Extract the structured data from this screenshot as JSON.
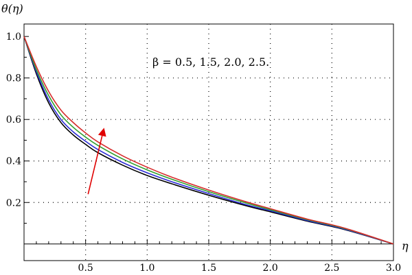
{
  "chart_data": {
    "type": "line",
    "title": "",
    "ylabel": "θ(η)",
    "xlabel": "η",
    "annotation": "β = 0.5, 1.5, 2.0, 2.5.",
    "xlim": [
      0,
      3.0
    ],
    "ylim": [
      -0.08,
      1.06
    ],
    "xticks": [
      0.5,
      1.0,
      1.5,
      2.0,
      2.5,
      3.0
    ],
    "xtick_labels": [
      "0.5",
      "1.0",
      "1.5",
      "2.0",
      "2.5",
      "3.0"
    ],
    "yticks": [
      0.2,
      0.4,
      0.6,
      0.8,
      1.0
    ],
    "ytick_labels": [
      "0.2",
      "0.4",
      "0.6",
      "0.8",
      "1.0"
    ],
    "grid": true,
    "grid_style": "dotted",
    "x": [
      0,
      0.1,
      0.2,
      0.3,
      0.4,
      0.5,
      0.6,
      0.8,
      1.0,
      1.2,
      1.5,
      1.8,
      2.0,
      2.3,
      2.6,
      3.0
    ],
    "series": [
      {
        "color": "#000000",
        "values": [
          1.0,
          0.82,
          0.68,
          0.585,
          0.525,
          0.48,
          0.44,
          0.38,
          0.33,
          0.29,
          0.235,
          0.185,
          0.155,
          0.11,
          0.07,
          0.0
        ]
      },
      {
        "color": "#2b2bd6",
        "values": [
          1.0,
          0.83,
          0.695,
          0.6,
          0.54,
          0.495,
          0.455,
          0.393,
          0.343,
          0.3,
          0.243,
          0.19,
          0.16,
          0.113,
          0.072,
          0.0
        ]
      },
      {
        "color": "#2e9e2e",
        "values": [
          1.0,
          0.84,
          0.715,
          0.622,
          0.562,
          0.515,
          0.475,
          0.41,
          0.357,
          0.312,
          0.252,
          0.198,
          0.165,
          0.117,
          0.075,
          0.0
        ]
      },
      {
        "color": "#d62b2b",
        "values": [
          1.0,
          0.855,
          0.735,
          0.645,
          0.585,
          0.535,
          0.492,
          0.425,
          0.37,
          0.322,
          0.26,
          0.204,
          0.17,
          0.12,
          0.077,
          0.0
        ]
      }
    ],
    "arrow": {
      "color": "#e00000",
      "from": [
        0.52,
        0.24
      ],
      "to": [
        0.65,
        0.56
      ]
    }
  }
}
